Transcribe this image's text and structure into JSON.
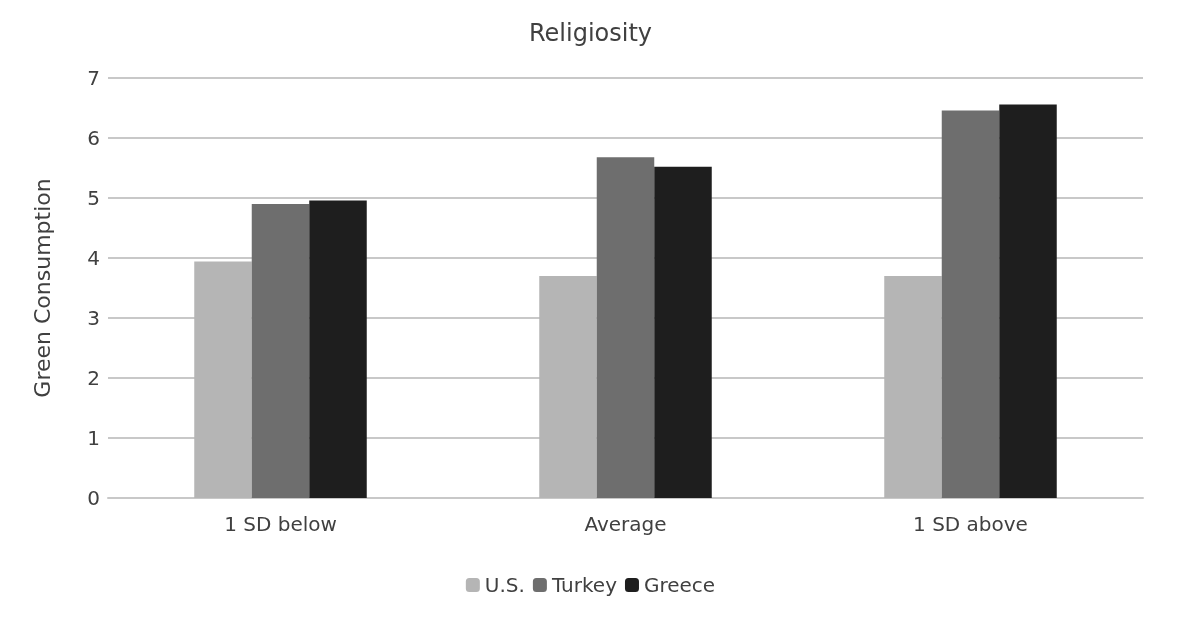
{
  "chart_data": {
    "type": "bar",
    "title": "Religiosity",
    "ylabel": "Green Consumption",
    "categories": [
      "1 SD below",
      "Average",
      "1 SD above"
    ],
    "series": [
      {
        "name": "U.S.",
        "color": "#b5b5b5",
        "values": [
          3.94,
          3.7,
          3.7
        ]
      },
      {
        "name": "Turkey",
        "color": "#6e6e6e",
        "values": [
          4.9,
          5.68,
          6.46
        ]
      },
      {
        "name": "Greece",
        "color": "#1e1e1e",
        "values": [
          4.96,
          5.52,
          6.56
        ]
      }
    ],
    "ylim": [
      0,
      7
    ],
    "yticks": [
      0,
      1,
      2,
      3,
      4,
      5,
      6,
      7
    ],
    "grid": "y",
    "legend": "bottom"
  }
}
